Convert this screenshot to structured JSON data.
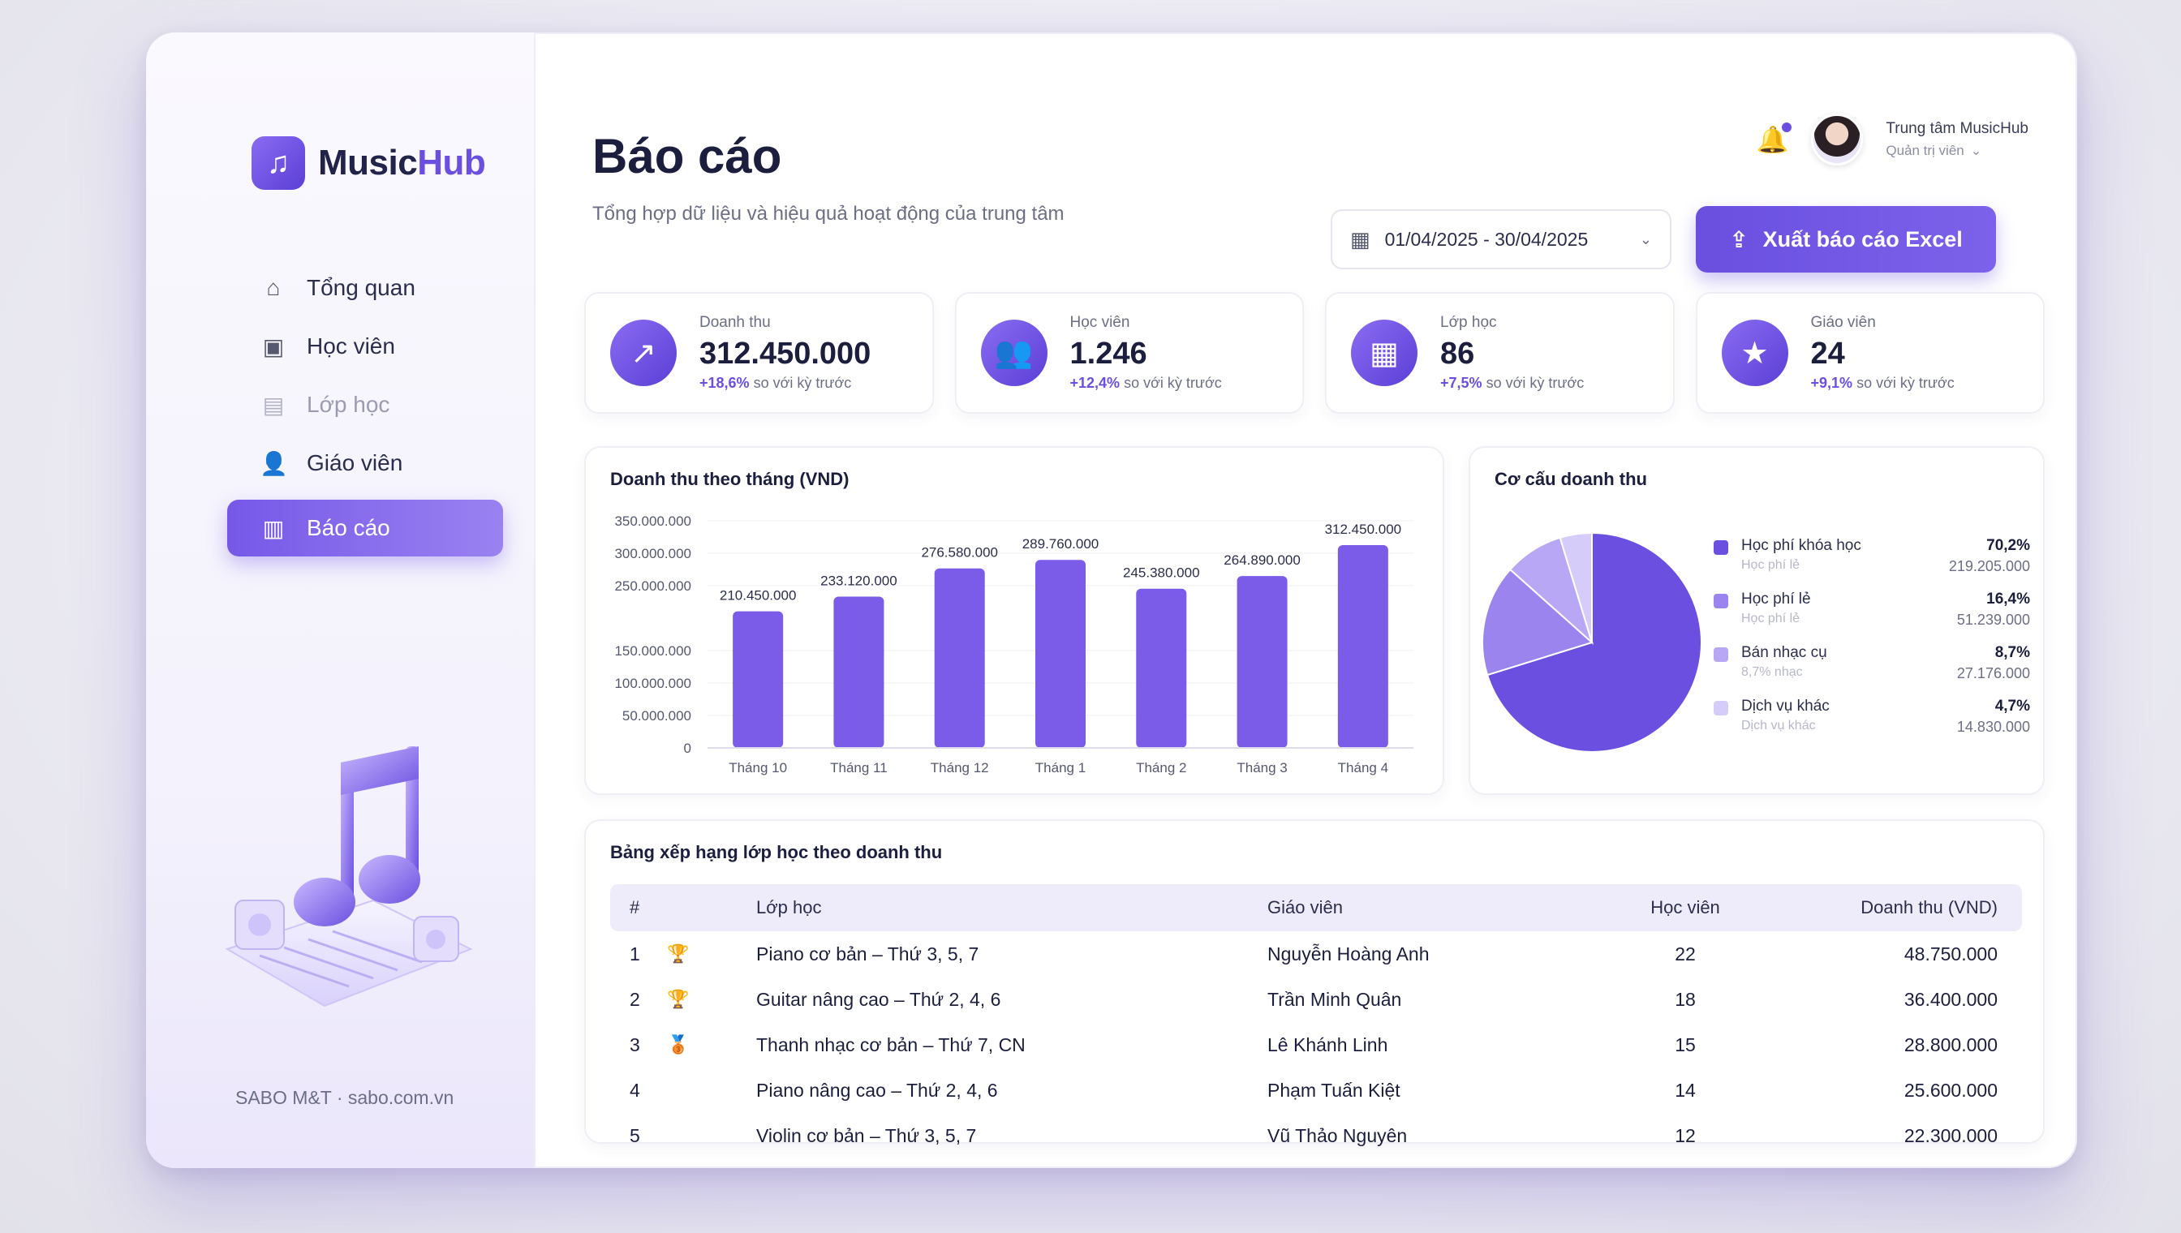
{
  "window": {
    "dots": [
      "#e0534a",
      "#e8b341",
      "#4fbf57"
    ]
  },
  "brand": {
    "name_a": "Music",
    "name_b": "Hub",
    "icon": "music-note-icon",
    "accent": "#6a4fe0"
  },
  "sidebar": {
    "items": [
      {
        "label": "Tổng quan",
        "icon": "home-icon",
        "state": "normal"
      },
      {
        "label": "Học viên",
        "icon": "students-icon",
        "state": "normal"
      },
      {
        "label": "Lớp học",
        "icon": "classroom-icon",
        "state": "muted"
      },
      {
        "label": "Giáo viên",
        "icon": "teacher-icon",
        "state": "normal"
      },
      {
        "label": "Báo cáo",
        "icon": "bar-chart-icon",
        "state": "active"
      }
    ],
    "footer": "SABO M&T · sabo.com.vn"
  },
  "header": {
    "title": "Báo cáo",
    "subtitle": "Tổng hợp dữ liệu và hiệu quả hoạt động của trung tâm",
    "user_name": "Trung tâm MusicHub",
    "user_role": "Quản trị viên",
    "date_range": "01/04/2025 - 30/04/2025",
    "export_label": "Xuất báo cáo Excel"
  },
  "kpis": [
    {
      "label": "Doanh thu",
      "value": "312.450.000",
      "delta": "+18,6%",
      "delta_text": "so với kỳ trước",
      "icon": "trend-chart-icon"
    },
    {
      "label": "Học viên",
      "value": "1.246",
      "delta": "+12,4%",
      "delta_text": "so với kỳ trước",
      "icon": "users-icon"
    },
    {
      "label": "Lớp học",
      "value": "86",
      "delta": "+7,5%",
      "delta_text": "so với kỳ trước",
      "icon": "calendar-icon"
    },
    {
      "label": "Giáo viên",
      "value": "24",
      "delta": "+9,1%",
      "delta_text": "so với kỳ trước",
      "icon": "teacher-star-icon"
    }
  ],
  "chart_data": [
    {
      "type": "bar",
      "title": "Doanh thu theo tháng (VND)",
      "categories": [
        "Tháng 10",
        "Tháng 11",
        "Tháng 12",
        "Tháng 1",
        "Tháng 2",
        "Tháng 3",
        "Tháng 4"
      ],
      "values": [
        210450000,
        233120000,
        276580000,
        289760000,
        245380000,
        264890000,
        312450000
      ],
      "value_labels": [
        "210.450.000",
        "233.120.000",
        "276.580.000",
        "289.760.000",
        "245.380.000",
        "264.890.000",
        "312.450.000"
      ],
      "ylim": [
        0,
        350000000
      ],
      "y_ticks": [
        0,
        50000000,
        100000000,
        150000000,
        250000000,
        300000000,
        350000000
      ],
      "y_tick_labels": [
        "0",
        "50.000.000",
        "100.000.000",
        "150.000.000",
        "250.000.000",
        "300.000.000",
        "350.000.000"
      ],
      "color": "#7a5ce8"
    },
    {
      "type": "pie",
      "title": "Cơ cấu doanh thu",
      "slices": [
        {
          "name": "Học phí khóa học",
          "pct": "70,2%",
          "value": 70.2,
          "amount": "219.205.000",
          "color": "#6a4fe0",
          "sub": "Học phí lẻ"
        },
        {
          "name": "Học phí lẻ",
          "pct": "16,4%",
          "value": 16.4,
          "amount": "51.239.000",
          "color": "#9b84ee",
          "sub": "Học phí lẻ"
        },
        {
          "name": "Bán nhạc cụ",
          "pct": "8,7%",
          "value": 8.7,
          "amount": "27.176.000",
          "color": "#b8a7f4",
          "sub": "8,7% nhạc"
        },
        {
          "name": "Dịch vụ khác",
          "pct": "4,7%",
          "value": 4.7,
          "amount": "14.830.000",
          "color": "#d6ccfa",
          "sub": "Dịch vụ khác"
        }
      ]
    }
  ],
  "ranking": {
    "title": "Bảng xếp hạng lớp học theo doanh thu",
    "columns": [
      "#",
      "Lớp học",
      "Giáo viên",
      "Học viên",
      "Doanh thu (VND)"
    ],
    "rows": [
      {
        "rank": "1",
        "medal": "gold",
        "class": "Piano cơ bản – Thứ 3, 5, 7",
        "teacher": "Nguyễn Hoàng Anh",
        "students": "22",
        "revenue": "48.750.000"
      },
      {
        "rank": "2",
        "medal": "silver",
        "class": "Guitar nâng cao – Thứ 2, 4, 6",
        "teacher": "Trần Minh Quân",
        "students": "18",
        "revenue": "36.400.000"
      },
      {
        "rank": "3",
        "medal": "bronze",
        "class": "Thanh nhạc cơ bản – Thứ 7, CN",
        "teacher": "Lê Khánh Linh",
        "students": "15",
        "revenue": "28.800.000"
      },
      {
        "rank": "4",
        "medal": "",
        "class": "Piano nâng cao – Thứ 2, 4, 6",
        "teacher": "Phạm Tuấn Kiệt",
        "students": "14",
        "revenue": "25.600.000"
      },
      {
        "rank": "5",
        "medal": "",
        "class": "Violin cơ bản – Thứ 3, 5, 7",
        "teacher": "Vũ Thảo Nguyên",
        "students": "12",
        "revenue": "22.300.000"
      }
    ]
  }
}
